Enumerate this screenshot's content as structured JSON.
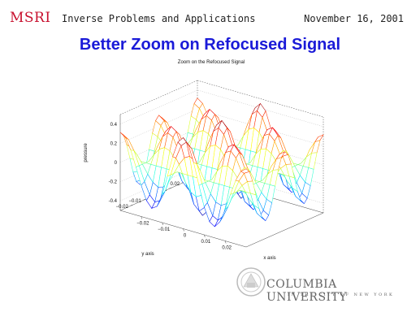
{
  "header": {
    "logo": "MSRI",
    "event": "Inverse Problems and Applications",
    "date": "November 16, 2001"
  },
  "slide": {
    "title": "Better Zoom on Refocused Signal"
  },
  "footer": {
    "university": "COLUMBIA UNIVERSITY",
    "subtitle": "IN THE CITY OF NEW YORK"
  },
  "chart_data": {
    "type": "surface",
    "title": "Zoom on the Refocused Signal",
    "xlabel": "x axis",
    "ylabel": "y axis",
    "zlabel": "pressure",
    "xlim": [
      -0.03,
      0.03
    ],
    "ylim": [
      -0.03,
      0.03
    ],
    "zlim": [
      -0.5,
      0.5
    ],
    "xticks": [
      "-0.02",
      "-0.01",
      "0",
      "0.01",
      "0.02"
    ],
    "yticks": [
      "-0.02",
      "-0.01",
      "0",
      "0.01",
      "0.02"
    ],
    "zticks": [
      "-0.4",
      "-0.2",
      "0",
      "0.2",
      "0.4"
    ],
    "grid": true,
    "colormap": "jet",
    "peak_value": 0.45,
    "trough_value": -0.45
  }
}
